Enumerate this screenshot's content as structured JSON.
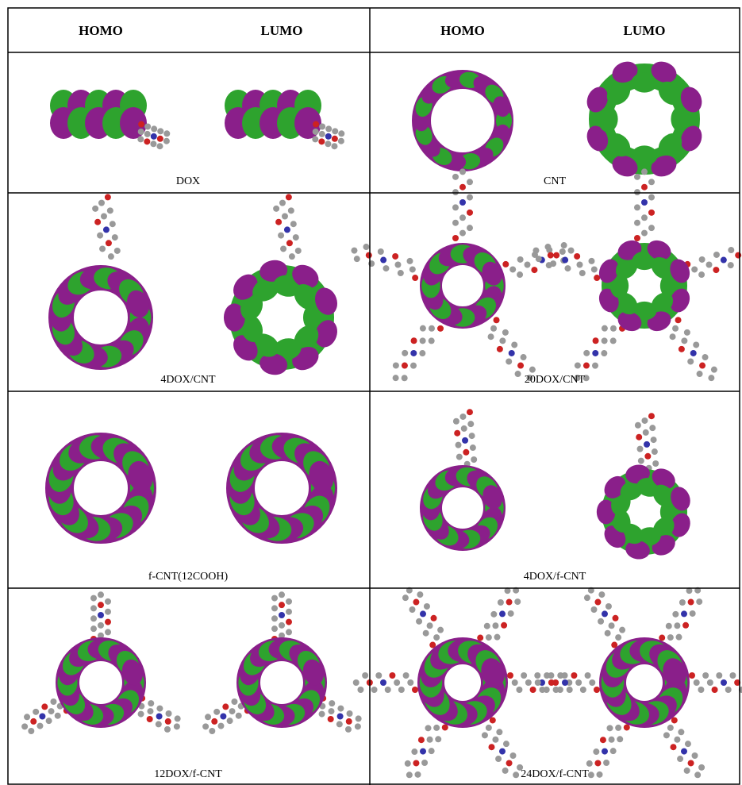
{
  "header": {
    "columns": [
      "HOMO",
      "LUMO",
      "HOMO",
      "LUMO"
    ]
  },
  "table": {
    "rows": [
      [
        "DOX",
        "CNT"
      ],
      [
        "4DOX/CNT",
        "20DOX/CNT"
      ],
      [
        "f-CNT(12COOH)",
        "4DOX/f-CNT"
      ],
      [
        "12DOX/f-CNT",
        "24DOX/f-CNT"
      ]
    ]
  }
}
